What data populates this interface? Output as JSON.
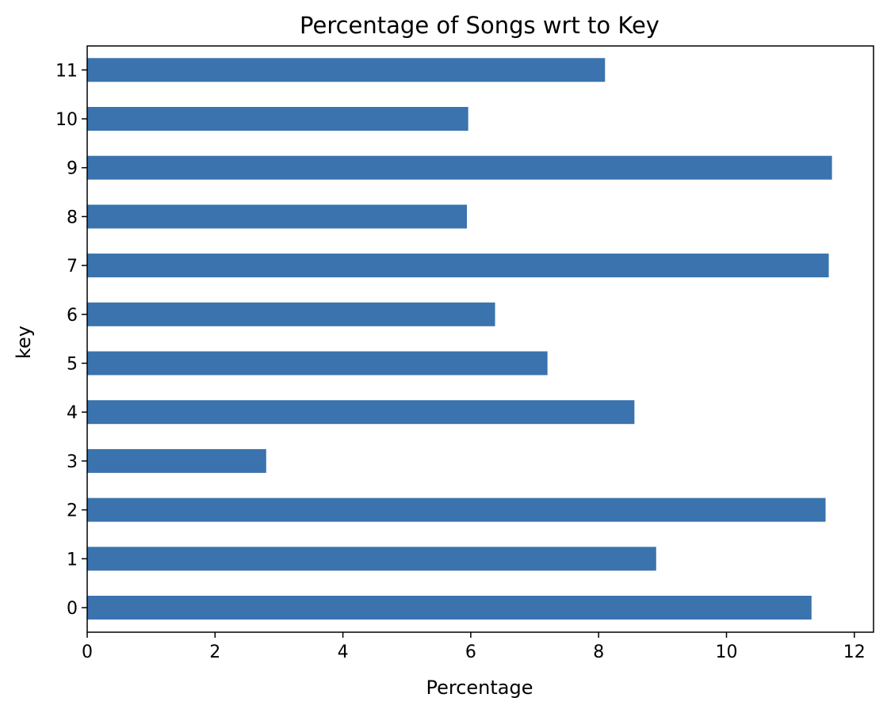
{
  "chart_data": {
    "type": "bar",
    "orientation": "horizontal",
    "title": "Percentage of Songs wrt to Key",
    "xlabel": "Percentage",
    "ylabel": "key",
    "categories": [
      "0",
      "1",
      "2",
      "3",
      "4",
      "5",
      "6",
      "7",
      "8",
      "9",
      "10",
      "11"
    ],
    "values": [
      11.33,
      8.9,
      11.55,
      2.8,
      8.56,
      7.2,
      6.38,
      11.6,
      5.94,
      11.65,
      5.96,
      8.1
    ],
    "xlim": [
      0,
      12.3
    ],
    "xticks": [
      "0",
      "2",
      "4",
      "6",
      "8",
      "10",
      "12"
    ],
    "bar_color": "#3a73ad",
    "grid": false,
    "legend": "none"
  }
}
